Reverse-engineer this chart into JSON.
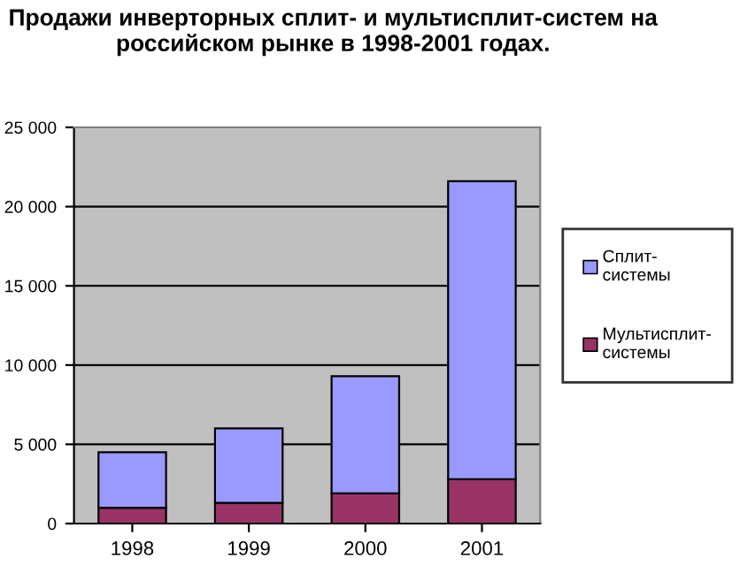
{
  "chart_data": {
    "type": "bar",
    "title": "Продажи инверторных сплит- и мультисплит-систем на российском рынке в 1998-2001 годах.",
    "categories": [
      "1998",
      "1999",
      "2000",
      "2001"
    ],
    "stacked": true,
    "series": [
      {
        "name": "Мультисплит-системы",
        "color": "#993366",
        "values": [
          1000,
          1300,
          1900,
          2800
        ]
      },
      {
        "name": "Сплит-системы",
        "color": "#9999ff",
        "values": [
          3500,
          4700,
          7400,
          18800
        ]
      }
    ],
    "ylim": [
      0,
      25000
    ],
    "yticks": [
      {
        "value": 0,
        "label": "0"
      },
      {
        "value": 5000,
        "label": "5 000"
      },
      {
        "value": 10000,
        "label": "10 000"
      },
      {
        "value": 15000,
        "label": "15 000"
      },
      {
        "value": 20000,
        "label": "20 000"
      },
      {
        "value": 25000,
        "label": "25 000"
      }
    ],
    "grid": "y",
    "legend": "right"
  }
}
